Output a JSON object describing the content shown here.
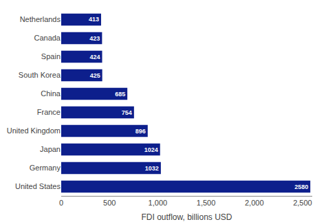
{
  "chart_data": {
    "type": "bar",
    "orientation": "horizontal",
    "categories": [
      "United States",
      "Germany",
      "Japan",
      "United Kingdom",
      "France",
      "China",
      "South Korea",
      "Spain",
      "Canada",
      "Netherlands"
    ],
    "values": [
      2580,
      1032,
      1024,
      896,
      754,
      685,
      425,
      424,
      423,
      413
    ],
    "color": "#0d1f8c",
    "xlabel": "FDI outflow, billions USD",
    "xlim": [
      0,
      2600
    ],
    "xticks": [
      0,
      500,
      {
        "value": 1000,
        "label": "1,000"
      },
      {
        "value": 1500,
        "label": "1,500"
      },
      {
        "value": 2000,
        "label": "2,000"
      },
      {
        "value": 2500,
        "label": "2,500"
      }
    ],
    "grid": false,
    "data_labels": true
  }
}
